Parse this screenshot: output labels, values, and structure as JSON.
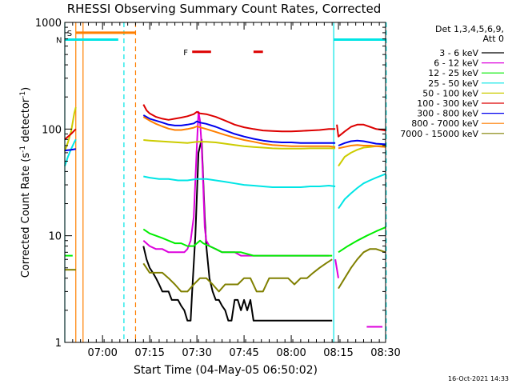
{
  "chart_data": {
    "type": "line",
    "title": "RHESSI Observing Summary Count Rates, Corrected",
    "xlabel": "Start Time (04-May-05 06:50:02)",
    "ylabel": "Corrected Count Rate (s",
    "ylabel_sup": "-1",
    "ylabel_mid": " detector",
    "ylabel_end": ")",
    "x_range_min": [
      -2,
      100
    ],
    "y_scale": "log",
    "ylim": [
      1,
      1000
    ],
    "x_ticks": [
      {
        "min": 10,
        "label": "07:00"
      },
      {
        "min": 25,
        "label": "07:15"
      },
      {
        "min": 40,
        "label": "07:30"
      },
      {
        "min": 55,
        "label": "07:45"
      },
      {
        "min": 70,
        "label": "08:00"
      },
      {
        "min": 85,
        "label": "08:15"
      },
      {
        "min": 100,
        "label": "08:30"
      }
    ],
    "y_ticks": [
      {
        "value": 1,
        "label": "1"
      },
      {
        "value": 10,
        "label": "10"
      },
      {
        "value": 100,
        "label": "100"
      },
      {
        "value": 1000,
        "label": "1000"
      }
    ],
    "legend_header": [
      "Det 1,3,4,5,6,9,",
      "Att 0"
    ],
    "legend_position": "right",
    "timestamp": "16-Oct-2021 14:33",
    "flags": [
      {
        "label": "S",
        "color": "#ff7f00",
        "x": [
          1.5,
          20.5
        ],
        "y": 800
      },
      {
        "label": "N",
        "color": "#00e5e5",
        "x": [
          -2,
          15
        ],
        "y": 690
      },
      {
        "label": "F",
        "color": "#dd0000",
        "x": [
          38.5,
          44.5
        ],
        "y": 530
      },
      {
        "label": "",
        "color": "#dd0000",
        "x": [
          58,
          61
        ],
        "y": 530
      },
      {
        "label": "",
        "color": "#00e5e5",
        "x": [
          83.5,
          100
        ],
        "y": 690
      }
    ],
    "vlines": [
      {
        "x": -2,
        "color": "#00e5e5",
        "dash": false
      },
      {
        "x": 1.5,
        "color": "#ff7f00",
        "dash": false
      },
      {
        "x": 3.8,
        "color": "#ff7f00",
        "dash": false
      },
      {
        "x": 16.8,
        "color": "#00e5e5",
        "dash": true
      },
      {
        "x": 20.5,
        "color": "#ff7f00",
        "dash": true
      },
      {
        "x": 83.5,
        "color": "#00e5e5",
        "dash": false
      },
      {
        "x": 100.2,
        "color": "#00e5e5",
        "dash": true
      }
    ],
    "series": [
      {
        "name": "3 - 6 keV",
        "color": "#000000",
        "segments": [
          {
            "x": [
              23,
              24,
              25,
              26,
              27,
              28,
              29,
              30,
              31,
              32,
              33,
              34,
              35,
              36,
              37,
              38,
              38.5,
              39.5,
              40.5,
              41.5,
              42.5,
              43,
              44,
              45,
              46,
              47,
              48,
              49,
              50,
              51,
              52,
              53,
              54,
              55,
              56,
              57,
              58,
              59,
              60,
              61,
              62,
              64,
              66,
              68,
              70,
              72,
              74,
              76,
              78,
              80,
              82,
              83
            ],
            "y": [
              8,
              6,
              5,
              4.5,
              4,
              3.5,
              3,
              3,
              3,
              2.5,
              2.5,
              2.5,
              2.2,
              2,
              1.6,
              1.6,
              3,
              10,
              60,
              80,
              15,
              8,
              4,
              3,
              2.5,
              2.5,
              2.2,
              2,
              1.6,
              1.6,
              2.5,
              2.5,
              2,
              2.5,
              2,
              2.5,
              1.6,
              1.6,
              1.6,
              1.6,
              1.6,
              1.6,
              1.6,
              1.6,
              1.6,
              1.6,
              1.6,
              1.6,
              1.6,
              1.6,
              1.6,
              1.6
            ]
          }
        ]
      },
      {
        "name": "6 - 12 keV",
        "color": "#dd00dd",
        "segments": [
          {
            "x": [
              23,
              25,
              27,
              29,
              31,
              33,
              35,
              36,
              37,
              38,
              39,
              40,
              40.5,
              41,
              41.5,
              42,
              42.5,
              43,
              44,
              46,
              48,
              50,
              52,
              54,
              56,
              58,
              60,
              62,
              64,
              66,
              68,
              70,
              72,
              74,
              76,
              78,
              80,
              82
            ],
            "y": [
              9,
              8,
              7.5,
              7.5,
              7,
              7,
              7,
              7,
              7.5,
              9,
              15,
              70,
              145,
              120,
              70,
              30,
              12,
              9,
              8,
              7.5,
              7,
              7,
              7,
              6.5,
              6.5,
              6.5,
              6.5,
              6.5,
              6.5,
              6.5,
              6.5,
              6.5,
              6.5,
              6.5,
              6.5,
              6.5,
              6.5,
              6.5
            ]
          },
          {
            "x": [
              84,
              85
            ],
            "y": [
              6,
              4
            ]
          },
          {
            "x": [
              94,
              99
            ],
            "y": [
              1.4,
              1.4
            ]
          }
        ]
      },
      {
        "name": "12 - 25 keV",
        "color": "#00ee00",
        "segments": [
          {
            "x": [
              -2,
              0.5
            ],
            "y": [
              6.5,
              6.5
            ]
          },
          {
            "x": [
              23,
              25,
              27,
              29,
              31,
              33,
              35,
              37,
              39,
              40,
              41,
              42,
              44,
              46,
              48,
              50,
              54,
              58,
              62,
              66,
              70,
              74,
              78,
              82,
              83
            ],
            "y": [
              11.5,
              10.5,
              10,
              9.5,
              9,
              8.5,
              8.5,
              8,
              8,
              8.5,
              9,
              8.5,
              8,
              7.5,
              7,
              7,
              7,
              6.5,
              6.5,
              6.5,
              6.5,
              6.5,
              6.5,
              6.5,
              6.5
            ]
          },
          {
            "x": [
              85,
              88,
              91,
              94,
              97,
              100
            ],
            "y": [
              7,
              8,
              9,
              10,
              11,
              12
            ]
          }
        ]
      },
      {
        "name": "25 - 50 keV",
        "color": "#00e5e5",
        "segments": [
          {
            "x": [
              -2,
              -1,
              0,
              1,
              1.5
            ],
            "y": [
              45,
              55,
              65,
              75,
              80
            ]
          },
          {
            "x": [
              23,
              25,
              28,
              31,
              34,
              37,
              40,
              43,
              46,
              49,
              52,
              55,
              58,
              61,
              64,
              67,
              70,
              73,
              76,
              79,
              82,
              84
            ],
            "y": [
              36,
              35,
              34,
              34,
              33,
              33,
              34,
              34,
              33,
              32,
              31,
              30,
              29.5,
              29,
              28.5,
              28.5,
              28.5,
              28.5,
              29,
              29,
              29.5,
              29
            ]
          },
          {
            "x": [
              85,
              87,
              89,
              91,
              93,
              95,
              97,
              100
            ],
            "y": [
              18,
              22,
              25,
              28,
              31,
              33,
              35,
              38
            ]
          }
        ]
      },
      {
        "name": "50 - 100 keV",
        "color": "#cccc00",
        "segments": [
          {
            "x": [
              -2,
              -1,
              0,
              1,
              1.5
            ],
            "y": [
              62,
              75,
              95,
              140,
              160
            ]
          },
          {
            "x": [
              23,
              25,
              28,
              31,
              34,
              37,
              40,
              43,
              46,
              49,
              52,
              55,
              58,
              61,
              64,
              67,
              70,
              73,
              76,
              79,
              82,
              84
            ],
            "y": [
              79,
              78,
              77,
              76,
              75,
              74,
              76,
              76,
              75,
              73,
              71,
              69,
              68,
              67,
              66,
              65.5,
              65.5,
              65.5,
              66,
              66,
              66,
              66
            ]
          },
          {
            "x": [
              85,
              87,
              89,
              91,
              93,
              95,
              97,
              100
            ],
            "y": [
              45,
              55,
              60,
              64,
              67,
              68,
              69,
              70
            ]
          }
        ]
      },
      {
        "name": "100 - 300 keV",
        "color": "#dd0000",
        "segments": [
          {
            "x": [
              -2,
              0,
              1.5
            ],
            "y": [
              80,
              90,
              100
            ]
          },
          {
            "x": [
              23,
              24,
              25,
              27,
              29,
              31,
              33,
              35,
              37,
              39,
              40,
              41,
              43,
              46,
              49,
              52,
              55,
              58,
              61,
              64,
              67,
              70,
              73,
              76,
              79,
              82,
              84
            ],
            "y": [
              170,
              150,
              140,
              130,
              125,
              122,
              125,
              128,
              132,
              138,
              145,
              140,
              138,
              130,
              120,
              110,
              104,
              100,
              97,
              96,
              95,
              95,
              96,
              97,
              98,
              100,
              100
            ]
          },
          {
            "x": [
              84.5,
              85,
              87,
              89,
              91,
              93,
              95,
              97,
              100
            ],
            "y": [
              110,
              85,
              95,
              105,
              110,
              110,
              105,
              100,
              97
            ]
          }
        ]
      },
      {
        "name": "300 - 800 keV",
        "color": "#0000ee",
        "segments": [
          {
            "x": [
              -2,
              0,
              1.5
            ],
            "y": [
              63,
              64,
              65
            ]
          },
          {
            "x": [
              23,
              25,
              27,
              29,
              31,
              33,
              35,
              37,
              39,
              40,
              41,
              43,
              46,
              49,
              52,
              55,
              58,
              61,
              64,
              67,
              70,
              73,
              76,
              79,
              82,
              84
            ],
            "y": [
              135,
              125,
              120,
              115,
              110,
              108,
              108,
              110,
              113,
              118,
              115,
              112,
              105,
              97,
              90,
              85,
              81,
              78,
              76,
              75,
              75,
              74,
              74,
              74,
              74,
              74
            ]
          },
          {
            "x": [
              85,
              87,
              89,
              91,
              93,
              95,
              97,
              100
            ],
            "y": [
              70,
              74,
              77,
              78,
              77,
              75,
              73,
              72
            ]
          }
        ]
      },
      {
        "name": "800 - 7000 keV",
        "color": "#ff7f00",
        "segments": [
          {
            "x": [
              23,
              25,
              27,
              29,
              31,
              33,
              35,
              37,
              39,
              40,
              41,
              43,
              46,
              49,
              52,
              55,
              58,
              61,
              64,
              67,
              70,
              73,
              76,
              79,
              82,
              84
            ],
            "y": [
              130,
              120,
              112,
              106,
              101,
              98,
              98,
              100,
              103,
              106,
              104,
              100,
              94,
              88,
              83,
              79,
              76,
              73,
              71,
              70,
              69,
              69,
              69,
              69,
              69,
              68
            ]
          },
          {
            "x": [
              85,
              87,
              89,
              91,
              93,
              95,
              97,
              100
            ],
            "y": [
              66,
              68,
              70,
              71,
              70,
              70,
              69,
              68
            ]
          }
        ]
      },
      {
        "name": "7000 - 15000 keV",
        "color": "#808000",
        "segments": [
          {
            "x": [
              -2,
              0,
              1.5
            ],
            "y": [
              4.8,
              4.8,
              4.8
            ]
          },
          {
            "x": [
              23,
              25,
              27,
              29,
              31,
              33,
              35,
              37,
              39,
              41,
              43,
              45,
              47,
              49,
              51,
              53,
              55,
              57,
              59,
              61,
              63,
              65,
              67,
              69,
              71,
              73,
              75,
              77,
              79,
              81,
              83
            ],
            "y": [
              5.5,
              4.5,
              4.5,
              4.5,
              4,
              3.5,
              3,
              3,
              3.5,
              4,
              4,
              3.5,
              3,
              3.5,
              3.5,
              3.5,
              4,
              4,
              3,
              3,
              4,
              4,
              4,
              4,
              3.5,
              4,
              4,
              4.5,
              5,
              5.5,
              6
            ]
          },
          {
            "x": [
              85,
              87,
              89,
              91,
              93,
              95,
              97,
              100
            ],
            "y": [
              3.2,
              4,
              5,
              6,
              7,
              7.5,
              7.5,
              7
            ]
          }
        ]
      }
    ]
  }
}
